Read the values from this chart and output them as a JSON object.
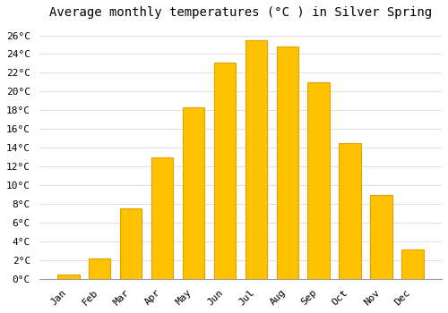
{
  "title": "Average monthly temperatures (°C ) in Silver Spring",
  "months": [
    "Jan",
    "Feb",
    "Mar",
    "Apr",
    "May",
    "Jun",
    "Jul",
    "Aug",
    "Sep",
    "Oct",
    "Nov",
    "Dec"
  ],
  "values": [
    0.5,
    2.2,
    7.5,
    13.0,
    18.3,
    23.1,
    25.5,
    24.8,
    21.0,
    14.5,
    9.0,
    3.1
  ],
  "bar_color": "#FFC200",
  "bar_edge_color": "#E8A000",
  "background_color": "#FFFFFF",
  "plot_bg_color": "#FFFFFF",
  "grid_color": "#DDDDDD",
  "ylim": [
    0,
    27
  ],
  "yticks": [
    0,
    2,
    4,
    6,
    8,
    10,
    12,
    14,
    16,
    18,
    20,
    22,
    24,
    26
  ],
  "title_fontsize": 10,
  "tick_fontsize": 8,
  "tick_font_family": "monospace"
}
